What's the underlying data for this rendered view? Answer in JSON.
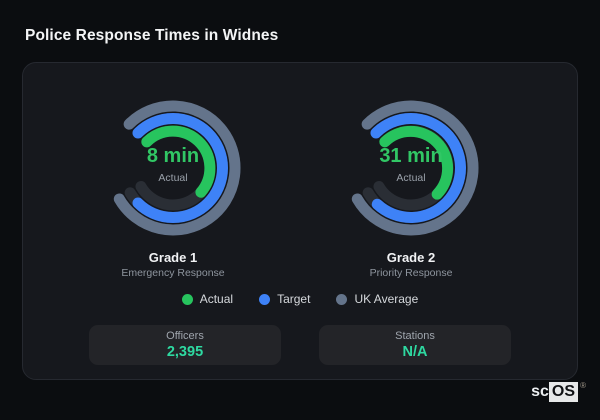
{
  "page": {
    "title": "Police Response Times in Widnes"
  },
  "colors": {
    "accent_green": "#27c45e",
    "accent_blue": "#3e82f7",
    "accent_slate": "#64748b",
    "value_teal": "#2ed9a1",
    "ring_track": "#2a2e35",
    "panel_bg": "#16181d",
    "page_bg": "#0b0d10"
  },
  "chart_data": {
    "type": "radial-gauge",
    "title": "Police Response Times in Widnes",
    "start_deg": -45,
    "track_deg": 285,
    "ring_stroke_width": 11,
    "track_color": "#2a2e35",
    "gauges": [
      {
        "label": "Grade 1",
        "sublabel": "Emergency Response",
        "center_value": "8 min",
        "center_label": "Actual",
        "rings": [
          {
            "name": "UK Average",
            "color": "#64748b",
            "radius": 62,
            "sweep_deg": 285
          },
          {
            "name": "Target",
            "color": "#3e82f7",
            "radius": 49.5,
            "sweep_deg": 270
          },
          {
            "name": "Actual",
            "color": "#27c45e",
            "radius": 37,
            "sweep_deg": 176
          }
        ]
      },
      {
        "label": "Grade 2",
        "sublabel": "Priority Response",
        "center_value": "31 min",
        "center_label": "Actual",
        "rings": [
          {
            "name": "UK Average",
            "color": "#64748b",
            "radius": 62,
            "sweep_deg": 285
          },
          {
            "name": "Target",
            "color": "#3e82f7",
            "radius": 49.5,
            "sweep_deg": 268
          },
          {
            "name": "Actual",
            "color": "#27c45e",
            "radius": 37,
            "sweep_deg": 180
          }
        ]
      }
    ],
    "legend": [
      {
        "label": "Actual",
        "color": "#27c45e"
      },
      {
        "label": "Target",
        "color": "#3e82f7"
      },
      {
        "label": "UK Average",
        "color": "#64748b"
      }
    ],
    "stats": [
      {
        "label": "Officers",
        "value": "2,395"
      },
      {
        "label": "Stations",
        "value": "N/A"
      }
    ]
  },
  "brand": {
    "prefix": "sc",
    "suffix": "OS",
    "trademark": "®"
  }
}
